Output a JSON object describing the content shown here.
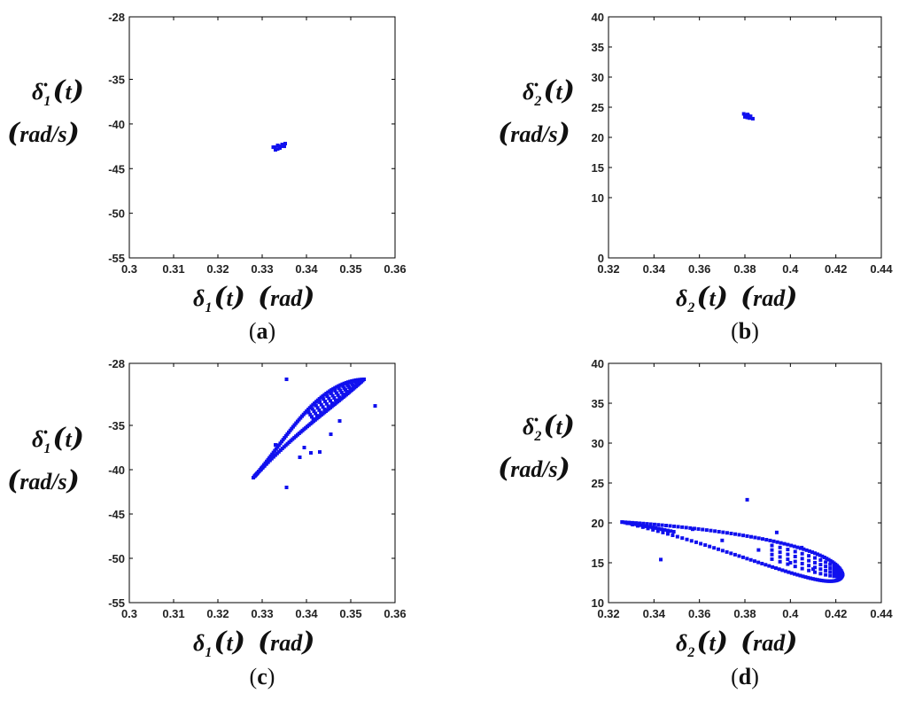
{
  "chart_data": [
    {
      "id": "a",
      "type": "scatter",
      "panel_label": "a",
      "x_label": {
        "symbol": "δ",
        "subscript": "1",
        "arg": "t",
        "unit": "rad"
      },
      "y_label": {
        "symbol": "δ̇",
        "subscript": "1",
        "arg": "t",
        "unit": "rad/s"
      },
      "xlim": [
        0.3,
        0.36
      ],
      "ylim": [
        -55,
        -28
      ],
      "x_ticks": [
        "0.3",
        "0.31",
        "0.32",
        "0.33",
        "0.34",
        "0.35",
        "0.36"
      ],
      "y_ticks": [
        "-28",
        "-35",
        "-40",
        "-45",
        "-50",
        "-55"
      ],
      "marker_color": "#1010ee",
      "points": [
        [
          0.3325,
          -42.6
        ],
        [
          0.333,
          -42.9
        ],
        [
          0.3335,
          -42.4
        ],
        [
          0.334,
          -42.7
        ],
        [
          0.3345,
          -42.3
        ],
        [
          0.335,
          -42.5
        ],
        [
          0.3335,
          -42.8
        ],
        [
          0.3342,
          -42.5
        ],
        [
          0.3352,
          -42.2
        ],
        [
          0.3328,
          -42.6
        ]
      ]
    },
    {
      "id": "b",
      "type": "scatter",
      "panel_label": "b",
      "x_label": {
        "symbol": "δ",
        "subscript": "2",
        "arg": "t",
        "unit": "rad"
      },
      "y_label": {
        "symbol": "δ̇",
        "subscript": "2",
        "arg": "t",
        "unit": "rad/s"
      },
      "xlim": [
        0.32,
        0.44
      ],
      "ylim": [
        0,
        40
      ],
      "x_ticks": [
        "0.32",
        "0.34",
        "0.36",
        "0.38",
        "0.4",
        "0.42",
        "0.44"
      ],
      "y_ticks": [
        "40",
        "35",
        "30",
        "25",
        "20",
        "15",
        "10",
        "0"
      ],
      "marker_color": "#1010ee",
      "points": [
        [
          0.3795,
          23.9
        ],
        [
          0.3805,
          23.7
        ],
        [
          0.381,
          23.3
        ],
        [
          0.3815,
          23.6
        ],
        [
          0.382,
          23.2
        ],
        [
          0.3825,
          23.5
        ],
        [
          0.3835,
          23.1
        ],
        [
          0.38,
          23.4
        ],
        [
          0.3812,
          23.8
        ]
      ]
    },
    {
      "id": "c",
      "type": "scatter",
      "panel_label": "c",
      "x_label": {
        "symbol": "δ",
        "subscript": "1",
        "arg": "t",
        "unit": "rad"
      },
      "y_label": {
        "symbol": "δ̇",
        "subscript": "1",
        "arg": "t",
        "unit": "rad/s"
      },
      "xlim": [
        0.3,
        0.36
      ],
      "ylim": [
        -55,
        -28
      ],
      "x_ticks": [
        "0.3",
        "0.31",
        "0.32",
        "0.33",
        "0.34",
        "0.35",
        "0.36"
      ],
      "y_ticks": [
        "-28",
        "-35",
        "-40",
        "-45",
        "-50",
        "-55"
      ],
      "marker_color": "#1010ee",
      "loop": {
        "start": [
          0.328,
          -40.9
        ],
        "tip": [
          0.353,
          -29.8
        ],
        "upper_ctrl": [
          [
            0.335,
            -37.0
          ],
          [
            0.342,
            -30.0
          ]
        ],
        "lower_ctrl": [
          [
            0.346,
            -33.0
          ],
          [
            0.338,
            -35.5
          ]
        ]
      },
      "outliers": [
        [
          0.3355,
          -29.8
        ],
        [
          0.3355,
          -42.0
        ],
        [
          0.3555,
          -32.8
        ],
        [
          0.333,
          -37.2
        ],
        [
          0.3455,
          -36.0
        ],
        [
          0.3385,
          -38.6
        ],
        [
          0.3395,
          -37.5
        ],
        [
          0.341,
          -38.1
        ],
        [
          0.343,
          -38.0
        ],
        [
          0.3475,
          -34.5
        ]
      ]
    },
    {
      "id": "d",
      "type": "scatter",
      "panel_label": "d",
      "x_label": {
        "symbol": "δ",
        "subscript": "2",
        "arg": "t",
        "unit": "rad"
      },
      "y_label": {
        "symbol": "δ̇",
        "subscript": "2",
        "arg": "t",
        "unit": "rad/s"
      },
      "xlim": [
        0.32,
        0.44
      ],
      "ylim": [
        10,
        40
      ],
      "x_ticks": [
        "0.32",
        "0.34",
        "0.36",
        "0.38",
        "0.4",
        "0.42",
        "0.44"
      ],
      "y_ticks": [
        "40",
        "35",
        "30",
        "25",
        "20",
        "15",
        "10"
      ],
      "marker_color": "#1010ee",
      "loop": {
        "start": [
          0.326,
          20.1
        ],
        "tip": [
          0.423,
          13.5
        ],
        "upper_ctrl": [
          [
            0.36,
            19.5
          ],
          [
            0.42,
            17.5
          ]
        ],
        "lower_ctrl": [
          [
            0.42,
            10.5
          ],
          [
            0.38,
            16.5
          ]
        ]
      },
      "outliers": [
        [
          0.381,
          22.9
        ],
        [
          0.394,
          18.8
        ],
        [
          0.343,
          15.4
        ],
        [
          0.357,
          19.2
        ],
        [
          0.37,
          17.8
        ],
        [
          0.386,
          16.6
        ],
        [
          0.4,
          15.0
        ],
        [
          0.405,
          16.9
        ],
        [
          0.41,
          14.2
        ]
      ]
    }
  ]
}
